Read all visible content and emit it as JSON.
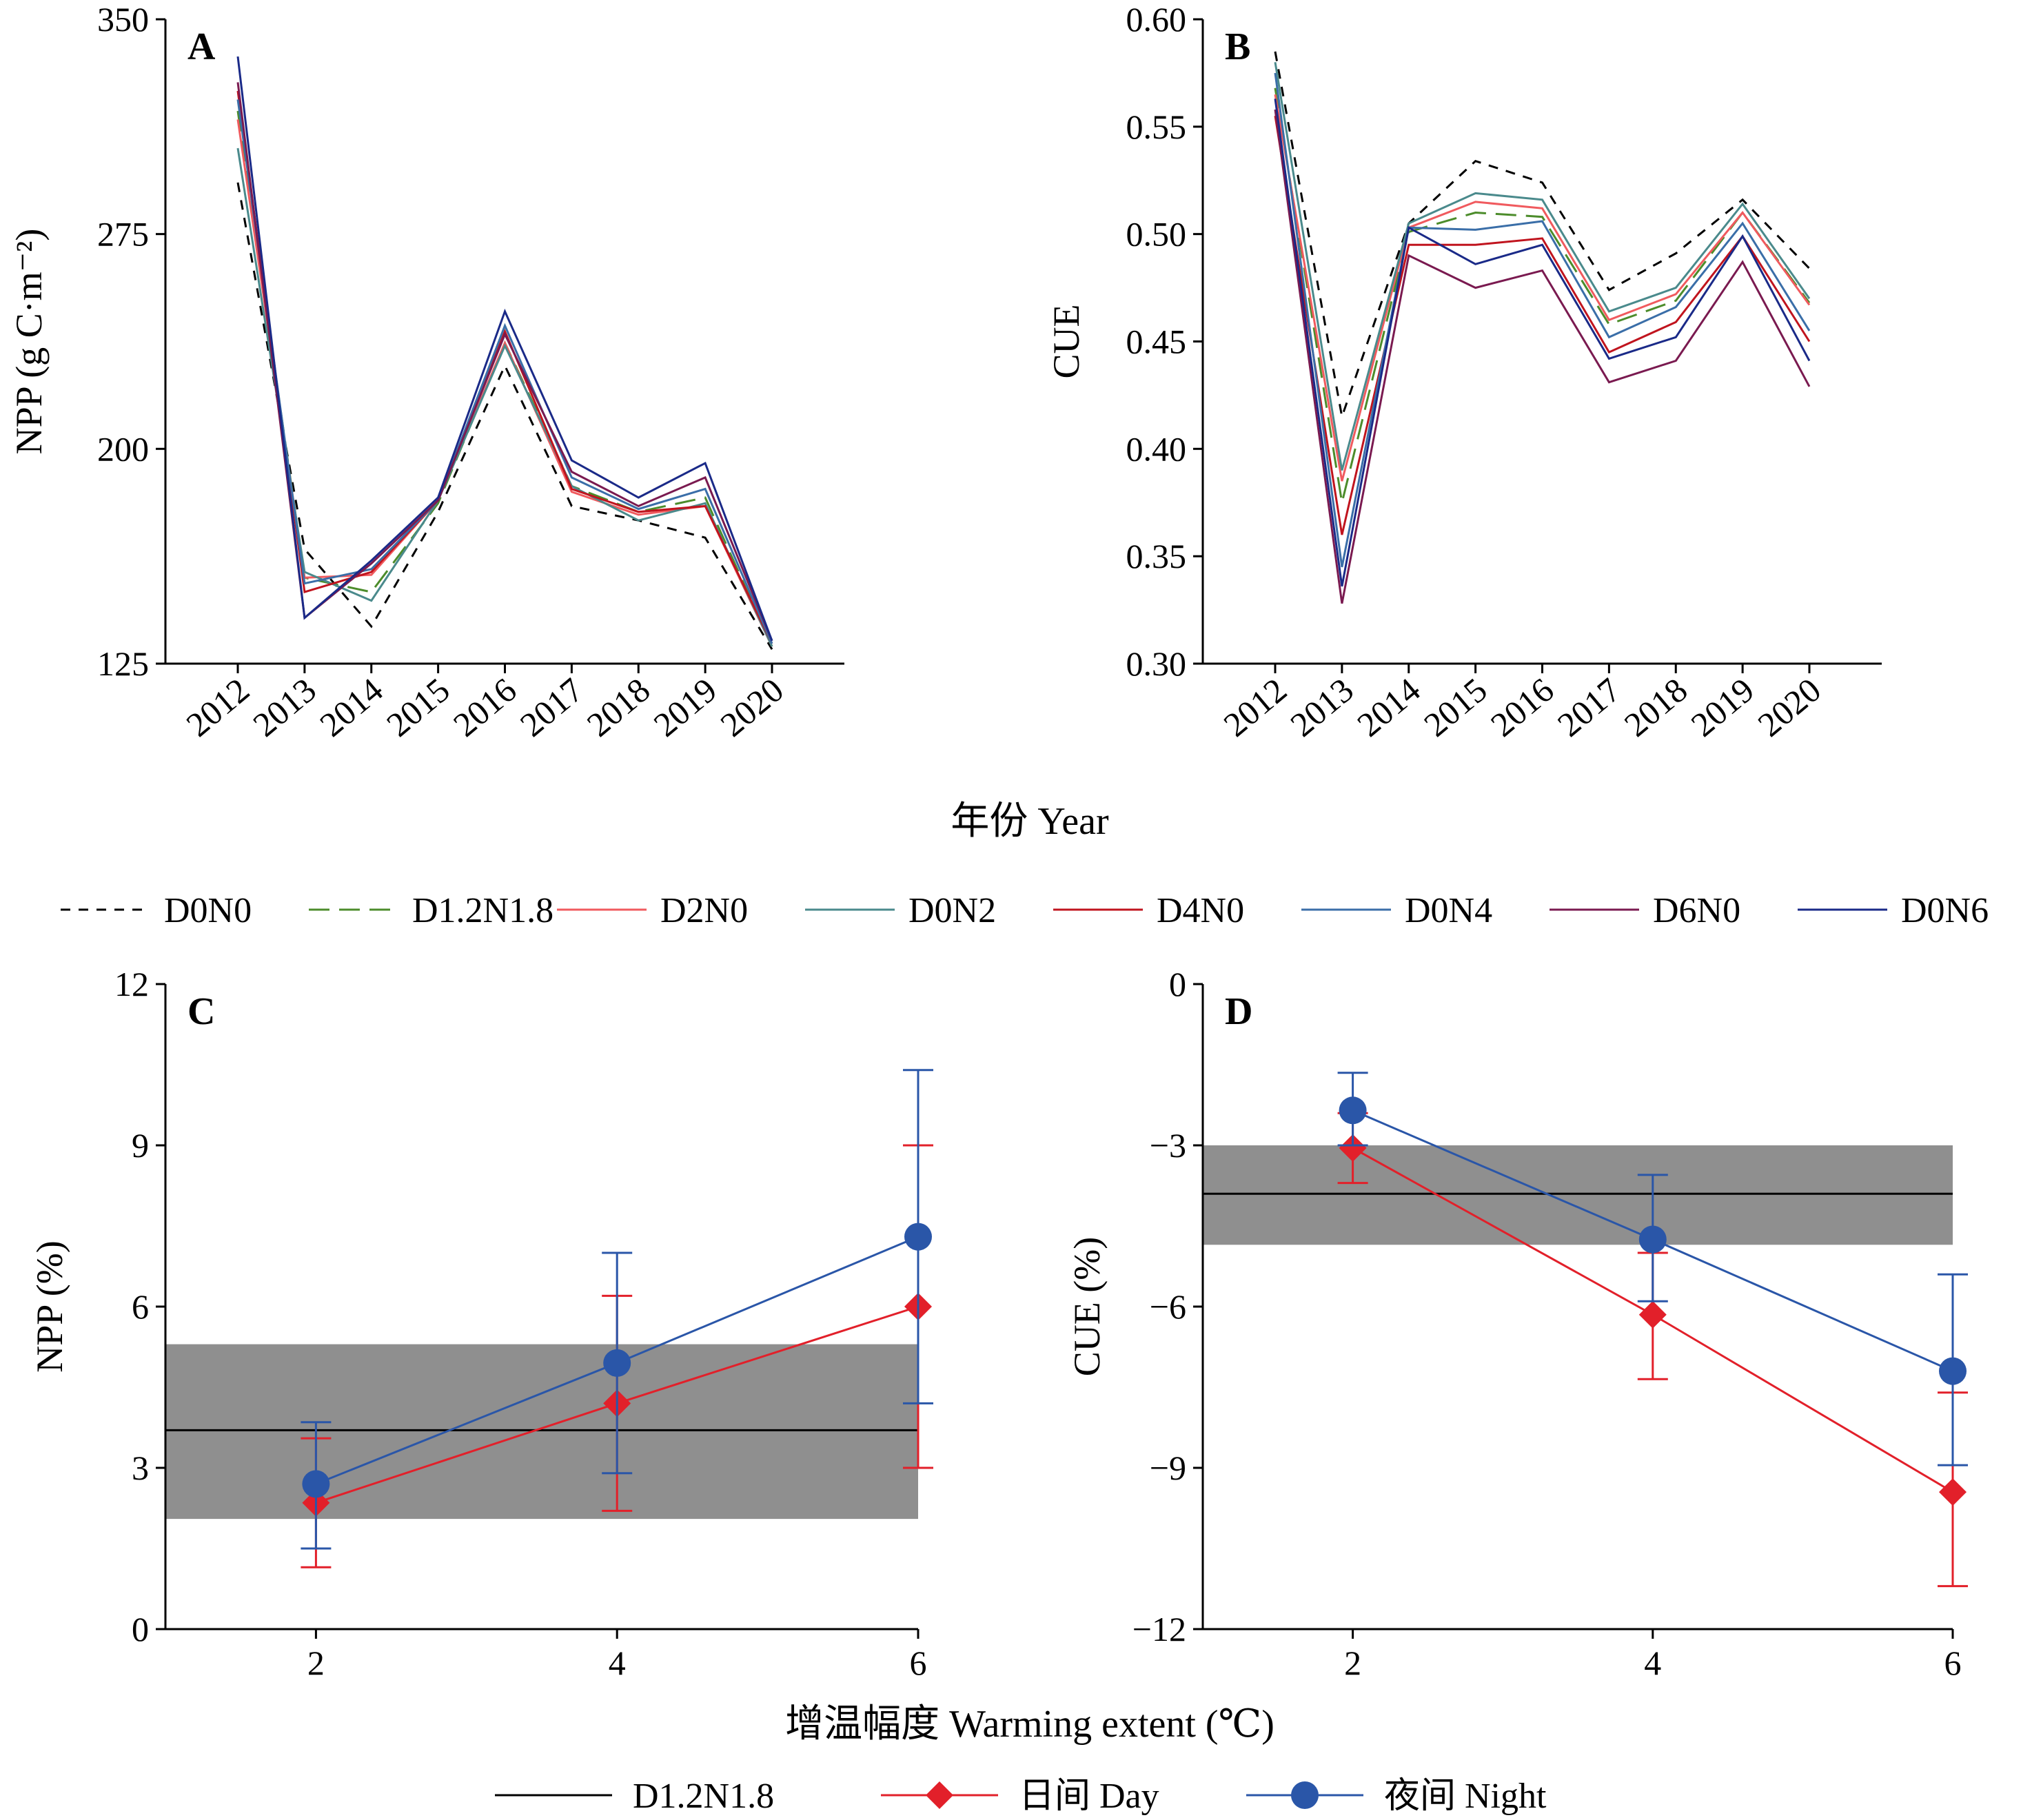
{
  "shared": {
    "top_xlabel": "年份 Year",
    "bottom_xlabel": "增温幅度 Warming extent (℃)"
  },
  "legend_top": [
    {
      "name": "D0N0",
      "color": "#000000",
      "dash": "14,12"
    },
    {
      "name": "D1.2N1.8",
      "color": "#4c8c2b",
      "dash": "30,14"
    },
    {
      "name": "D2N0",
      "color": "#f05a5e",
      "dash": ""
    },
    {
      "name": "D0N2",
      "color": "#4a8a8c",
      "dash": ""
    },
    {
      "name": "D4N0",
      "color": "#c0141e",
      "dash": ""
    },
    {
      "name": "D0N4",
      "color": "#3a6ea8",
      "dash": ""
    },
    {
      "name": "D6N0",
      "color": "#7a1a50",
      "dash": ""
    },
    {
      "name": "D0N6",
      "color": "#1a2a88",
      "dash": ""
    }
  ],
  "legend_bottom": [
    {
      "name": "D1.2N1.8",
      "color": "#000000",
      "marker": "none"
    },
    {
      "name": "日间 Day",
      "color": "#e2202a",
      "marker": "diamond"
    },
    {
      "name": "夜间 Night",
      "color": "#2a56a8",
      "marker": "circle"
    }
  ],
  "chart_data": [
    {
      "panel": "A",
      "type": "line",
      "ylabel": "NPP (g C·m⁻²)",
      "xlabel": "年份 Year",
      "ylim": [
        125,
        350
      ],
      "yticks": [
        125,
        200,
        275,
        350
      ],
      "categories": [
        "2012",
        "2013",
        "2014",
        "2015",
        "2016",
        "2017",
        "2018",
        "2019",
        "2020"
      ],
      "series": [
        {
          "name": "D0N0",
          "values": [
            293,
            165,
            138,
            178,
            229,
            180,
            175,
            169,
            130
          ]
        },
        {
          "name": "D1.2N1.8",
          "values": [
            318,
            155,
            150,
            181,
            237,
            187,
            178,
            183,
            131
          ]
        },
        {
          "name": "D2N0",
          "values": [
            315,
            155,
            156,
            182,
            237,
            185,
            177,
            180,
            131
          ]
        },
        {
          "name": "D0N2",
          "values": [
            305,
            157,
            147,
            182,
            236,
            187,
            175,
            181,
            131
          ]
        },
        {
          "name": "D4N0",
          "values": [
            325,
            150,
            157,
            182,
            241,
            186,
            178,
            180,
            132
          ]
        },
        {
          "name": "D0N4",
          "values": [
            322,
            153,
            158,
            182,
            243,
            190,
            179,
            186,
            132
          ]
        },
        {
          "name": "D6N0",
          "values": [
            328,
            141,
            160,
            182,
            240,
            192,
            180,
            190,
            133
          ]
        },
        {
          "name": "D0N6",
          "values": [
            337,
            141,
            161,
            183,
            248,
            196,
            183,
            195,
            133
          ]
        }
      ]
    },
    {
      "panel": "B",
      "type": "line",
      "ylabel": "CUE",
      "xlabel": "年份 Year",
      "ylim": [
        0.3,
        0.6
      ],
      "yticks": [
        "0.30",
        "0.35",
        "0.40",
        "0.45",
        "0.50",
        "0.55",
        "0.60"
      ],
      "categories": [
        "2012",
        "2013",
        "2014",
        "2015",
        "2016",
        "2017",
        "2018",
        "2019",
        "2020"
      ],
      "series": [
        {
          "name": "D0N0",
          "values": [
            0.585,
            0.415,
            0.505,
            0.534,
            0.524,
            0.474,
            0.491,
            0.516,
            0.484
          ]
        },
        {
          "name": "D1.2N1.8",
          "values": [
            0.568,
            0.375,
            0.501,
            0.51,
            0.508,
            0.458,
            0.469,
            0.51,
            0.468
          ]
        },
        {
          "name": "D2N0",
          "values": [
            0.565,
            0.385,
            0.503,
            0.515,
            0.512,
            0.46,
            0.472,
            0.51,
            0.467
          ]
        },
        {
          "name": "D0N2",
          "values": [
            0.58,
            0.39,
            0.505,
            0.519,
            0.516,
            0.464,
            0.475,
            0.514,
            0.47
          ]
        },
        {
          "name": "D4N0",
          "values": [
            0.555,
            0.36,
            0.495,
            0.495,
            0.498,
            0.445,
            0.459,
            0.499,
            0.45
          ]
        },
        {
          "name": "D0N4",
          "values": [
            0.575,
            0.345,
            0.503,
            0.502,
            0.506,
            0.452,
            0.466,
            0.505,
            0.455
          ]
        },
        {
          "name": "D6N0",
          "values": [
            0.558,
            0.328,
            0.49,
            0.475,
            0.483,
            0.431,
            0.441,
            0.487,
            0.429
          ]
        },
        {
          "name": "D0N6",
          "values": [
            0.563,
            0.336,
            0.503,
            0.486,
            0.495,
            0.442,
            0.452,
            0.499,
            0.441
          ]
        }
      ]
    },
    {
      "panel": "C",
      "type": "line",
      "ylabel": "NPP (%)",
      "xlabel": "增温幅度 Warming extent (℃)",
      "xlim": [
        1,
        6
      ],
      "ylim": [
        0,
        12
      ],
      "xticks": [
        2,
        4,
        6
      ],
      "yticks": [
        0,
        3,
        6,
        9,
        12
      ],
      "reference": {
        "name": "D1.2N1.8",
        "value": 3.7,
        "band": [
          2.05,
          5.3
        ]
      },
      "series": [
        {
          "name": "日间 Day",
          "x": [
            2,
            4,
            6
          ],
          "y": [
            2.35,
            4.2,
            6.0
          ],
          "err_low": [
            1.15,
            2.2,
            3.0
          ],
          "err_high": [
            3.55,
            6.2,
            9.0
          ]
        },
        {
          "name": "夜间 Night",
          "x": [
            2,
            4,
            6
          ],
          "y": [
            2.7,
            4.95,
            7.3
          ],
          "err_low": [
            1.5,
            2.9,
            4.2
          ],
          "err_high": [
            3.85,
            7.0,
            10.4
          ]
        }
      ]
    },
    {
      "panel": "D",
      "type": "line",
      "ylabel": "CUE (%)",
      "xlabel": "增温幅度 Warming extent (℃)",
      "xlim": [
        1,
        6
      ],
      "ylim": [
        -12,
        0
      ],
      "xticks": [
        2,
        4,
        6
      ],
      "yticks": [
        "−12",
        "−9",
        "−6",
        "−3",
        "0"
      ],
      "reference": {
        "name": "D1.2N1.8",
        "value": -3.9,
        "band": [
          -4.85,
          -3.0
        ]
      },
      "series": [
        {
          "name": "日间 Day",
          "x": [
            2,
            4,
            6
          ],
          "y": [
            -3.05,
            -6.15,
            -9.45
          ],
          "err_low": [
            -3.7,
            -7.35,
            -11.2
          ],
          "err_high": [
            -2.4,
            -5.0,
            -7.6
          ]
        },
        {
          "name": "夜间 Night",
          "x": [
            2,
            4,
            6
          ],
          "y": [
            -2.35,
            -4.75,
            -7.2
          ],
          "err_low": [
            -3.0,
            -5.9,
            -8.95
          ],
          "err_high": [
            -1.65,
            -3.55,
            -5.4
          ]
        }
      ]
    }
  ]
}
